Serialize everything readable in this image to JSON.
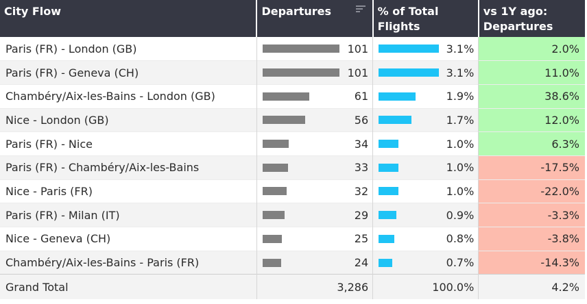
{
  "header": {
    "city_flow": "City Flow",
    "departures": "Departures",
    "share_line1": "% of Total",
    "share_line2": "Flights",
    "yoy_line1": "vs 1Y ago:",
    "yoy_line2": "Departures",
    "sort_icon": "sort-descending-icon"
  },
  "colors": {
    "header_bg": "#363844",
    "departures_bar": "#808080",
    "share_bar": "#1ec3f6",
    "positive_bg": "#b3fab2",
    "negative_bg": "#fdbcae"
  },
  "rows": [
    {
      "city": "Paris (FR) - London (GB)",
      "departures": "101",
      "share": "3.1%",
      "yoy": "2.0%",
      "dep_value": 101,
      "share_value": 3.1,
      "yoy_positive": true
    },
    {
      "city": "Paris (FR) - Geneva (CH)",
      "departures": "101",
      "share": "3.1%",
      "yoy": "11.0%",
      "dep_value": 101,
      "share_value": 3.1,
      "yoy_positive": true
    },
    {
      "city": "Chambéry/Aix-les-Bains - London (GB)",
      "departures": "61",
      "share": "1.9%",
      "yoy": "38.6%",
      "dep_value": 61,
      "share_value": 1.9,
      "yoy_positive": true
    },
    {
      "city": "Nice - London (GB)",
      "departures": "56",
      "share": "1.7%",
      "yoy": "12.0%",
      "dep_value": 56,
      "share_value": 1.7,
      "yoy_positive": true
    },
    {
      "city": "Paris (FR) - Nice",
      "departures": "34",
      "share": "1.0%",
      "yoy": "6.3%",
      "dep_value": 34,
      "share_value": 1.0,
      "yoy_positive": true
    },
    {
      "city": "Paris (FR) - Chambéry/Aix-les-Bains",
      "departures": "33",
      "share": "1.0%",
      "yoy": "-17.5%",
      "dep_value": 33,
      "share_value": 1.0,
      "yoy_positive": false
    },
    {
      "city": "Nice - Paris (FR)",
      "departures": "32",
      "share": "1.0%",
      "yoy": "-22.0%",
      "dep_value": 32,
      "share_value": 1.0,
      "yoy_positive": false
    },
    {
      "city": "Paris (FR) - Milan (IT)",
      "departures": "29",
      "share": "0.9%",
      "yoy": "-3.3%",
      "dep_value": 29,
      "share_value": 0.9,
      "yoy_positive": false
    },
    {
      "city": "Nice - Geneva (CH)",
      "departures": "25",
      "share": "0.8%",
      "yoy": "-3.8%",
      "dep_value": 25,
      "share_value": 0.8,
      "yoy_positive": false
    },
    {
      "city": "Chambéry/Aix-les-Bains - Paris (FR)",
      "departures": "24",
      "share": "0.7%",
      "yoy": "-14.3%",
      "dep_value": 24,
      "share_value": 0.7,
      "yoy_positive": false
    }
  ],
  "total": {
    "label": "Grand Total",
    "departures": "3,286",
    "share": "100.0%",
    "yoy": "4.2%"
  },
  "scale": {
    "dep_max": 101,
    "share_max": 3.1
  }
}
